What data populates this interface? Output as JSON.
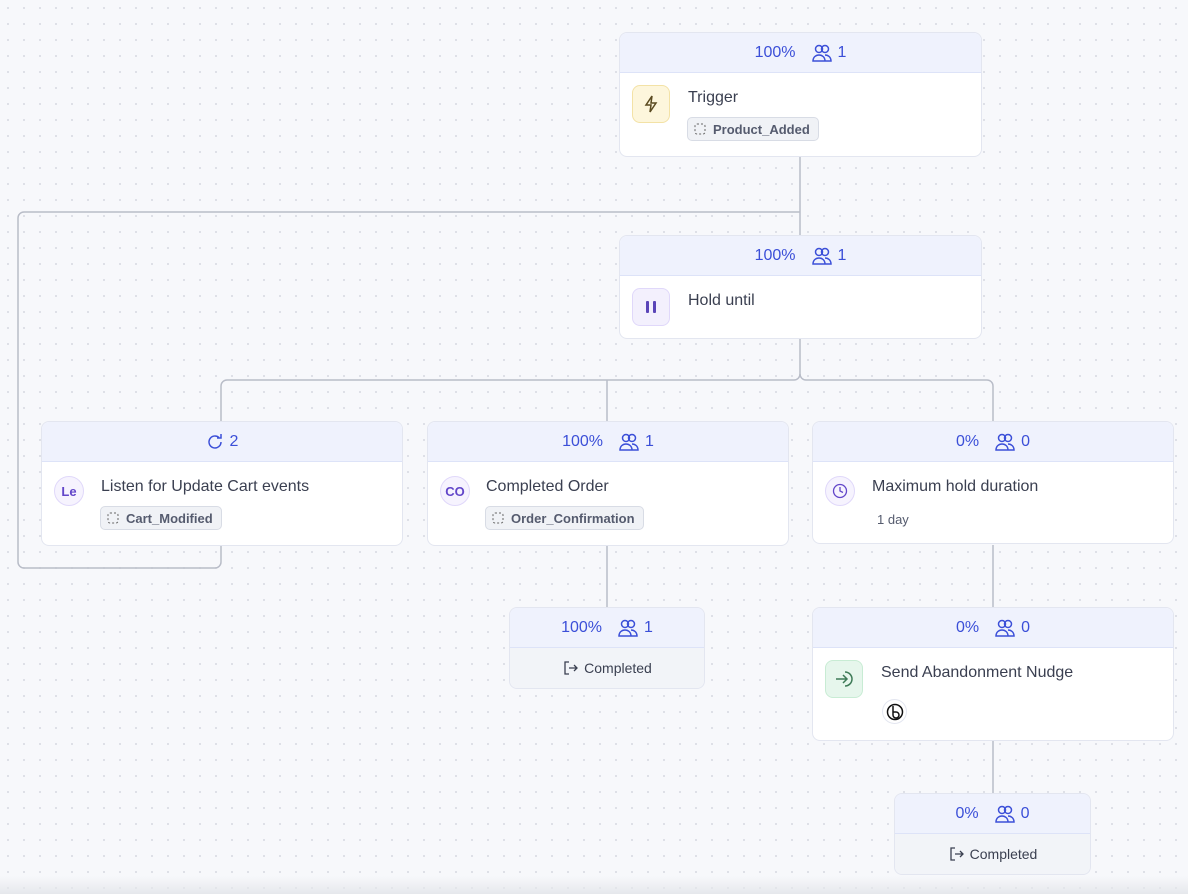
{
  "colors": {
    "accent": "#3b4fd8",
    "trigger_bg": "#fdf6dc",
    "hold_bg": "#f3f0fd",
    "send_bg": "#e6f6ec"
  },
  "nodes": {
    "trigger": {
      "percent": "100%",
      "users": "1",
      "title": "Trigger",
      "event": "Product_Added",
      "icon": "lightning-icon"
    },
    "hold": {
      "percent": "100%",
      "users": "1",
      "title": "Hold until",
      "icon": "pause-icon"
    },
    "listen": {
      "loops": "2",
      "avatar": "Le",
      "title": "Listen for Update Cart events",
      "event": "Cart_Modified"
    },
    "completed_order": {
      "percent": "100%",
      "users": "1",
      "avatar": "CO",
      "title": "Completed Order",
      "event": "Order_Confirmation"
    },
    "max_hold": {
      "percent": "0%",
      "users": "0",
      "title": "Maximum hold duration",
      "duration": "1 day",
      "icon": "clock-icon"
    },
    "end1": {
      "percent": "100%",
      "users": "1",
      "label": "Completed"
    },
    "send": {
      "percent": "0%",
      "users": "0",
      "title": "Send Abandonment Nudge",
      "icon": "enter-icon"
    },
    "end2": {
      "percent": "0%",
      "users": "0",
      "label": "Completed"
    }
  }
}
